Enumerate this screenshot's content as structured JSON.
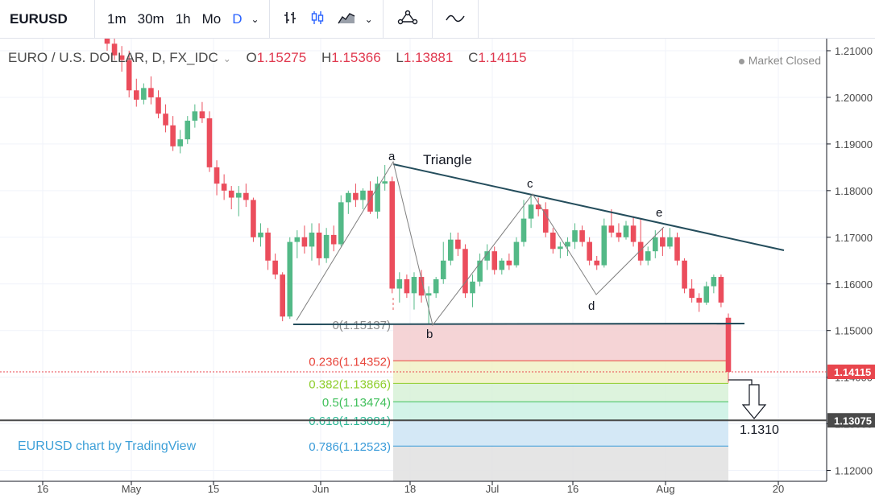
{
  "toolbar": {
    "symbol": "EURUSD",
    "intervals": [
      "1m",
      "30m",
      "1h",
      "Mo",
      "D"
    ],
    "active_interval": "D",
    "icons": [
      "chevron-down-icon",
      "bar-chart-icon",
      "candlestick-icon",
      "area-chart-icon",
      "compare-icon",
      "indicators-icon"
    ]
  },
  "legend": {
    "title": "EURO / U.S. DOLLAR, D, FX_IDC",
    "o_label": "O",
    "o": "1.15275",
    "h_label": "H",
    "h": "1.15366",
    "l_label": "L",
    "l": "1.13881",
    "c_label": "C",
    "c": "1.14115"
  },
  "status": "Market Closed",
  "credit": "EURUSD chart by TradingView",
  "colors": {
    "up": "#53b987",
    "down": "#eb4d5c",
    "trend": "#244d5c",
    "price_tag": "#e8464d",
    "level_tag": "#4a4a4a"
  },
  "chart_data": {
    "type": "candlestick",
    "y_axis": {
      "ticks": [
        "1.21000",
        "1.20000",
        "1.19000",
        "1.18000",
        "1.17000",
        "1.16000",
        "1.15000",
        "1.14000",
        "1.13000",
        "1.12000"
      ],
      "ylim": [
        1.119,
        1.212
      ]
    },
    "x_axis": {
      "ticks": [
        "16",
        "May",
        "15",
        "Jun",
        "18",
        "Jul",
        "16",
        "Aug",
        "20"
      ]
    },
    "last_price": "1.14115",
    "level_price": "1.13075",
    "annotations": {
      "pattern": "Triangle",
      "points": [
        "a",
        "b",
        "c",
        "d",
        "e"
      ],
      "target": "1.1310"
    },
    "fib_levels": [
      {
        "ratio": "0",
        "label": "0(1.15137)",
        "price": 1.15137,
        "color": "#8c8c8c"
      },
      {
        "ratio": "0.236",
        "label": "0.236(1.14352)",
        "price": 1.14352,
        "color": "#e8463c"
      },
      {
        "ratio": "0.382",
        "label": "0.382(1.13866)",
        "price": 1.13866,
        "color": "#8fce2d"
      },
      {
        "ratio": "0.5",
        "label": "0.5(1.13474)",
        "price": 1.13474,
        "color": "#3fbf5a"
      },
      {
        "ratio": "0.618",
        "label": "0.618(1.13081)",
        "price": 1.13081,
        "color": "#2db894"
      },
      {
        "ratio": "0.786",
        "label": "0.786(1.12523)",
        "price": 1.12523,
        "color": "#3a9bd9"
      }
    ],
    "candles": [
      [
        1.214,
        1.2155,
        1.21,
        1.2115
      ],
      [
        1.2115,
        1.213,
        1.208,
        1.209
      ],
      [
        1.209,
        1.211,
        1.2055,
        1.208
      ],
      [
        1.208,
        1.21,
        1.2,
        1.2015
      ],
      [
        1.2015,
        1.204,
        1.198,
        1.1995
      ],
      [
        1.1995,
        1.203,
        1.1985,
        1.202
      ],
      [
        1.202,
        1.2045,
        1.1985,
        1.2
      ],
      [
        1.2,
        1.2015,
        1.1955,
        1.1965
      ],
      [
        1.1965,
        1.1985,
        1.1925,
        1.194
      ],
      [
        1.194,
        1.196,
        1.1885,
        1.1895
      ],
      [
        1.1895,
        1.193,
        1.188,
        1.191
      ],
      [
        1.191,
        1.196,
        1.19,
        1.195
      ],
      [
        1.195,
        1.1985,
        1.1935,
        1.197
      ],
      [
        1.197,
        1.199,
        1.1945,
        1.1955
      ],
      [
        1.1955,
        1.197,
        1.184,
        1.185
      ],
      [
        1.185,
        1.1865,
        1.179,
        1.1815
      ],
      [
        1.1815,
        1.1835,
        1.178,
        1.18
      ],
      [
        1.18,
        1.181,
        1.176,
        1.1785
      ],
      [
        1.1785,
        1.181,
        1.1745,
        1.1795
      ],
      [
        1.1795,
        1.1815,
        1.1765,
        1.178
      ],
      [
        1.178,
        1.1785,
        1.169,
        1.17
      ],
      [
        1.17,
        1.173,
        1.168,
        1.171
      ],
      [
        1.171,
        1.172,
        1.163,
        1.165
      ],
      [
        1.165,
        1.1665,
        1.161,
        1.162
      ],
      [
        1.162,
        1.1625,
        1.152,
        1.153
      ],
      [
        1.153,
        1.17,
        1.1525,
        1.169
      ],
      [
        1.169,
        1.1715,
        1.1655,
        1.17
      ],
      [
        1.17,
        1.1725,
        1.1665,
        1.168
      ],
      [
        1.168,
        1.173,
        1.165,
        1.171
      ],
      [
        1.171,
        1.173,
        1.164,
        1.1655
      ],
      [
        1.1655,
        1.172,
        1.1645,
        1.1705
      ],
      [
        1.1705,
        1.1725,
        1.167,
        1.1685
      ],
      [
        1.1685,
        1.179,
        1.168,
        1.1775
      ],
      [
        1.1775,
        1.18,
        1.175,
        1.1795
      ],
      [
        1.1795,
        1.1815,
        1.1765,
        1.178
      ],
      [
        1.178,
        1.1805,
        1.176,
        1.18
      ],
      [
        1.18,
        1.182,
        1.175,
        1.1755
      ],
      [
        1.1755,
        1.183,
        1.174,
        1.1815
      ],
      [
        1.1815,
        1.1855,
        1.18,
        1.182
      ],
      [
        1.182,
        1.183,
        1.158,
        1.159
      ],
      [
        1.159,
        1.1625,
        1.156,
        1.161
      ],
      [
        1.161,
        1.162,
        1.157,
        1.158
      ],
      [
        1.158,
        1.1625,
        1.1545,
        1.1615
      ],
      [
        1.1615,
        1.163,
        1.156,
        1.1575
      ],
      [
        1.1575,
        1.1595,
        1.1515,
        1.158
      ],
      [
        1.158,
        1.1615,
        1.157,
        1.161
      ],
      [
        1.161,
        1.169,
        1.16,
        1.165
      ],
      [
        1.165,
        1.171,
        1.164,
        1.1695
      ],
      [
        1.1695,
        1.171,
        1.166,
        1.1675
      ],
      [
        1.1675,
        1.1685,
        1.157,
        1.158
      ],
      [
        1.158,
        1.162,
        1.155,
        1.1605
      ],
      [
        1.1605,
        1.1665,
        1.1595,
        1.165
      ],
      [
        1.165,
        1.1685,
        1.163,
        1.167
      ],
      [
        1.167,
        1.168,
        1.162,
        1.163
      ],
      [
        1.163,
        1.1655,
        1.162,
        1.165
      ],
      [
        1.165,
        1.1665,
        1.163,
        1.164
      ],
      [
        1.164,
        1.17,
        1.1635,
        1.169
      ],
      [
        1.169,
        1.178,
        1.168,
        1.174
      ],
      [
        1.174,
        1.179,
        1.172,
        1.177
      ],
      [
        1.177,
        1.1785,
        1.1745,
        1.176
      ],
      [
        1.176,
        1.1775,
        1.17,
        1.171
      ],
      [
        1.171,
        1.172,
        1.1665,
        1.1675
      ],
      [
        1.1675,
        1.169,
        1.1655,
        1.168
      ],
      [
        1.168,
        1.17,
        1.166,
        1.169
      ],
      [
        1.169,
        1.173,
        1.1675,
        1.1715
      ],
      [
        1.1715,
        1.1725,
        1.168,
        1.169
      ],
      [
        1.169,
        1.17,
        1.164,
        1.165
      ],
      [
        1.165,
        1.166,
        1.163,
        1.164
      ],
      [
        1.164,
        1.174,
        1.1635,
        1.1725
      ],
      [
        1.1725,
        1.176,
        1.17,
        1.171
      ],
      [
        1.171,
        1.173,
        1.169,
        1.17
      ],
      [
        1.17,
        1.1735,
        1.1695,
        1.1725
      ],
      [
        1.1725,
        1.1745,
        1.168,
        1.169
      ],
      [
        1.169,
        1.174,
        1.164,
        1.165
      ],
      [
        1.165,
        1.168,
        1.164,
        1.167
      ],
      [
        1.167,
        1.1715,
        1.1655,
        1.17
      ],
      [
        1.17,
        1.172,
        1.166,
        1.168
      ],
      [
        1.168,
        1.172,
        1.1675,
        1.17
      ],
      [
        1.17,
        1.171,
        1.164,
        1.165
      ],
      [
        1.165,
        1.1655,
        1.158,
        1.159
      ],
      [
        1.159,
        1.161,
        1.156,
        1.157
      ],
      [
        1.157,
        1.158,
        1.154,
        1.156
      ],
      [
        1.156,
        1.1605,
        1.1555,
        1.1595
      ],
      [
        1.1595,
        1.162,
        1.158,
        1.1615
      ],
      [
        1.1615,
        1.162,
        1.155,
        1.156
      ],
      [
        1.15275,
        1.15366,
        1.13881,
        1.14115
      ]
    ]
  }
}
